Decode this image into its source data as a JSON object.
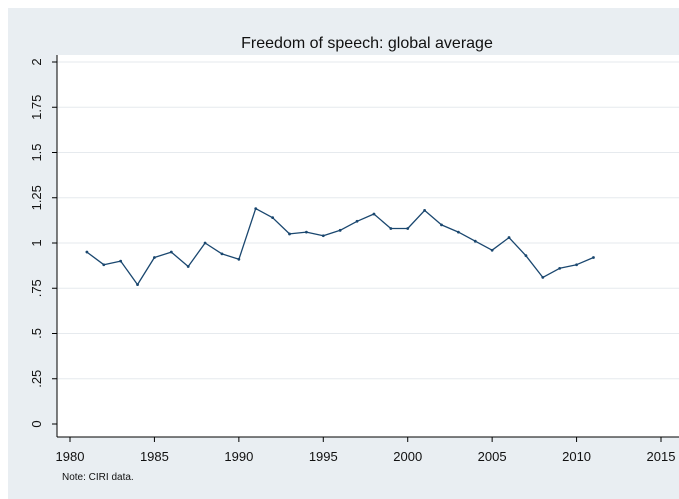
{
  "chart_data": {
    "type": "line",
    "title": "Freedom of speech: global average",
    "note": "Note: CIRI data.",
    "xlabel": "",
    "ylabel": "",
    "xlim": [
      1980,
      2015
    ],
    "ylim": [
      0,
      2
    ],
    "x_ticks": [
      1980,
      1985,
      1990,
      1995,
      2000,
      2005,
      2010,
      2015
    ],
    "x_tick_labels": [
      "1980",
      "1985",
      "1990",
      "1995",
      "2000",
      "2005",
      "2010",
      "2015"
    ],
    "y_ticks": [
      0,
      0.25,
      0.5,
      0.75,
      1,
      1.25,
      1.5,
      1.75,
      2
    ],
    "y_tick_labels": [
      "0",
      ".25",
      ".5",
      ".75",
      "1",
      "1.25",
      "1.5",
      "1.75",
      "2"
    ],
    "grid": true,
    "x": [
      1981,
      1982,
      1983,
      1984,
      1985,
      1986,
      1987,
      1988,
      1989,
      1990,
      1991,
      1992,
      1993,
      1994,
      1995,
      1996,
      1997,
      1998,
      1999,
      2000,
      2001,
      2002,
      2003,
      2004,
      2005,
      2006,
      2007,
      2008,
      2009,
      2010,
      2011
    ],
    "values": [
      0.95,
      0.88,
      0.9,
      0.77,
      0.92,
      0.95,
      0.87,
      1.0,
      0.94,
      0.91,
      1.19,
      1.14,
      1.05,
      1.06,
      1.04,
      1.07,
      1.12,
      1.16,
      1.08,
      1.08,
      1.18,
      1.1,
      1.06,
      1.01,
      0.96,
      1.03,
      0.93,
      0.81,
      0.86,
      0.88,
      0.92
    ],
    "line_color": "#1a476f",
    "background_color": "#e9eef2",
    "plot_background_color": "#ffffff"
  }
}
